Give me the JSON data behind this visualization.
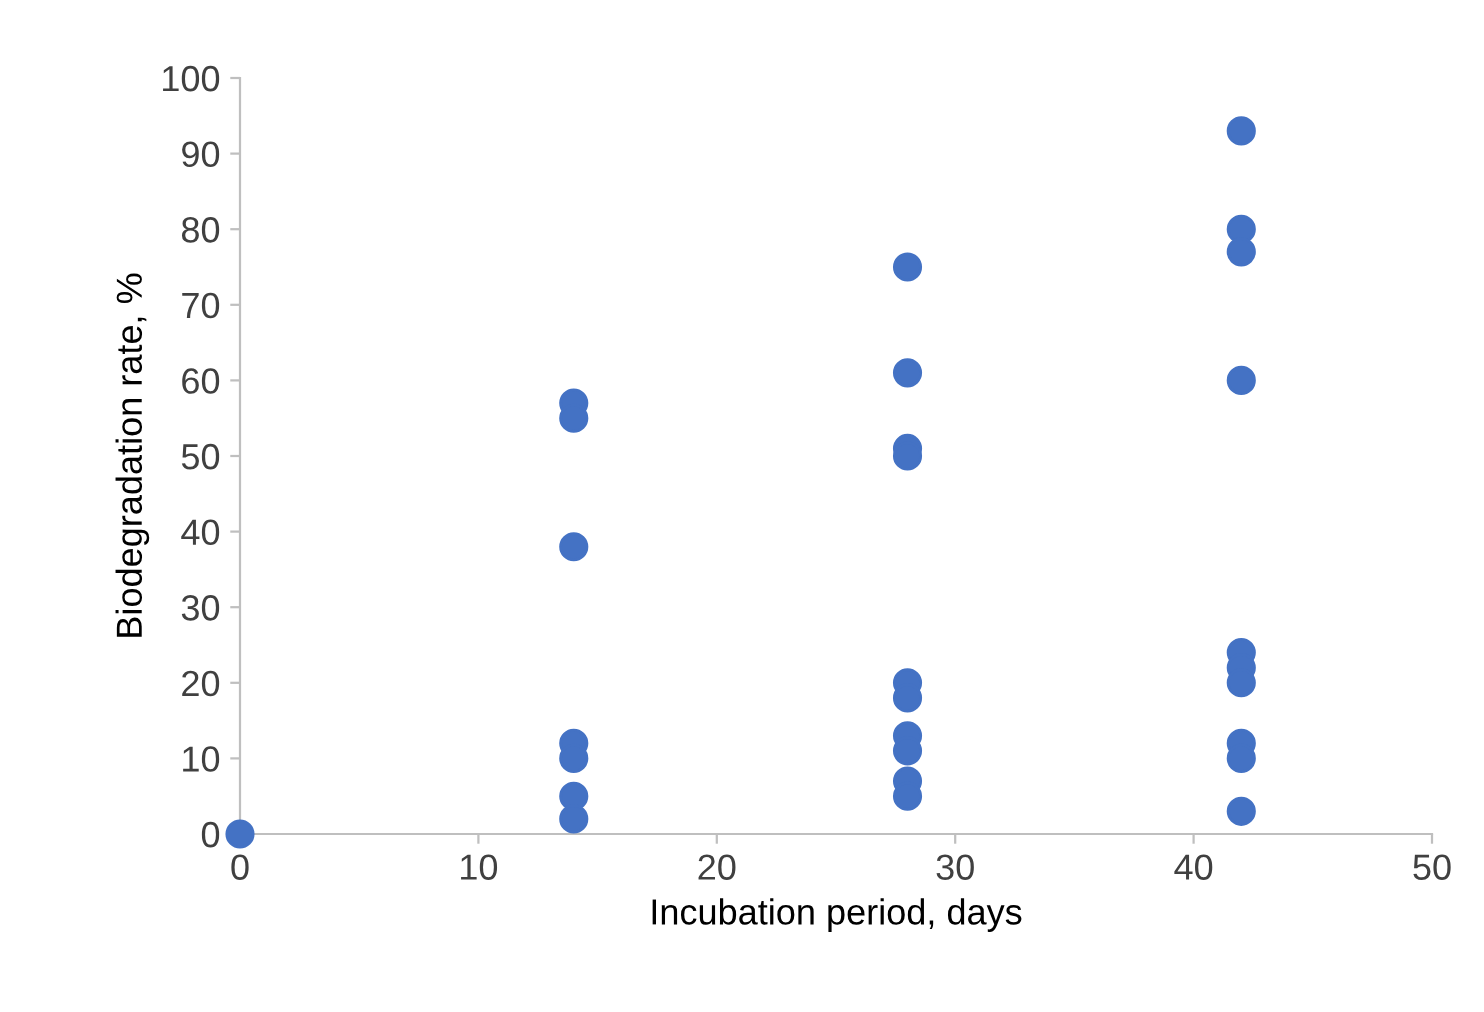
{
  "chart_data": {
    "type": "scatter",
    "xlabel": "Incubation period, days",
    "ylabel": "Biodegradation rate, %",
    "x": [
      0,
      14,
      14,
      14,
      14,
      14,
      14,
      14,
      28,
      28,
      28,
      28,
      28,
      28,
      28,
      28,
      28,
      28,
      42,
      42,
      42,
      42,
      42,
      42,
      42,
      42,
      42,
      42
    ],
    "values": [
      0,
      57,
      55,
      38,
      12,
      10,
      5,
      2,
      75,
      61,
      51,
      50,
      20,
      18,
      13,
      11,
      7,
      5,
      93,
      80,
      77,
      60,
      24,
      22,
      20,
      12,
      10,
      3
    ],
    "color": "#4472c4",
    "marker": "circle",
    "xlim": [
      0,
      50
    ],
    "xticks": [
      0,
      10,
      20,
      30,
      40,
      50
    ],
    "ylim": [
      0,
      100
    ],
    "yticks": [
      0,
      10,
      20,
      30,
      40,
      50,
      60,
      70,
      80,
      90,
      100
    ],
    "grid": false,
    "legend": false
  }
}
